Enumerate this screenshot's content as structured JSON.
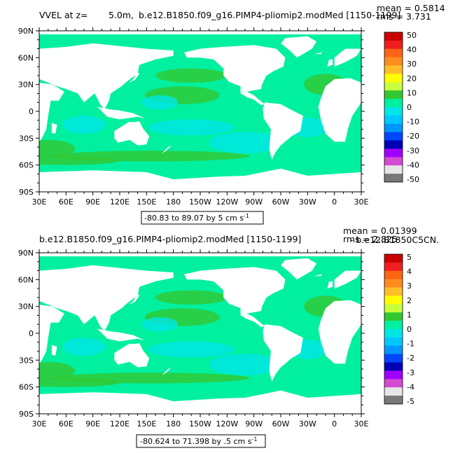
{
  "panel1": {
    "title_left": "VVEL at z=",
    "title_depth": "5.0m,",
    "title_case": "b.e12.B1850.f09_g16.PIMP4-pliomip2.modMed [1150-1199]",
    "mean": "mean = 0.5814",
    "rms": "rms = 3.731",
    "range_prefix": "-80.83 to 89.07 by 5 cm s",
    "range_exp": "-1",
    "colorbar_labels": [
      "50",
      "40",
      "30",
      "20",
      "10",
      "0",
      "-10",
      "-20",
      "-30",
      "-40",
      "-50"
    ]
  },
  "panel2": {
    "title_case": "b.e12.B1850.f09_g16.PIMP4-pliomip2.modMed [1150-1199]",
    "title_ref": "- b.e12.B1850C5CN.",
    "mean": "mean = 0.01399",
    "rms": "rms = 2.825",
    "range_prefix": "-80.624 to 71.398 by .5 cm s",
    "range_exp": "-1",
    "colorbar_labels": [
      "5",
      "4",
      "3",
      "2",
      "1",
      "0",
      "-1",
      "-2",
      "-3",
      "-4",
      "-5"
    ]
  },
  "lat_labels": [
    "90N",
    "60N",
    "30N",
    "0",
    "30S",
    "60S",
    "90S"
  ],
  "lon_labels": [
    "30E",
    "60E",
    "90E",
    "120E",
    "150E",
    "180",
    "150W",
    "120W",
    "90W",
    "60W",
    "30W",
    "0",
    "30E"
  ],
  "colorbar_colors": [
    "#c80000",
    "#f01e1e",
    "#ff6414",
    "#ff8c1e",
    "#ffbe28",
    "#ffff00",
    "#c8ff3c",
    "#32c832",
    "#00f0a0",
    "#00e6e6",
    "#00c8ff",
    "#0096ff",
    "#0046ff",
    "#0000b4",
    "#a000ff",
    "#d24bd2",
    "#e6e6e6",
    "#787878"
  ],
  "map_colors": {
    "land": "#ffffff",
    "ocean_base": "#00f0a0",
    "ocean_cyan": "#00e6e6",
    "ocean_green": "#32c832",
    "frame": "#000000"
  }
}
